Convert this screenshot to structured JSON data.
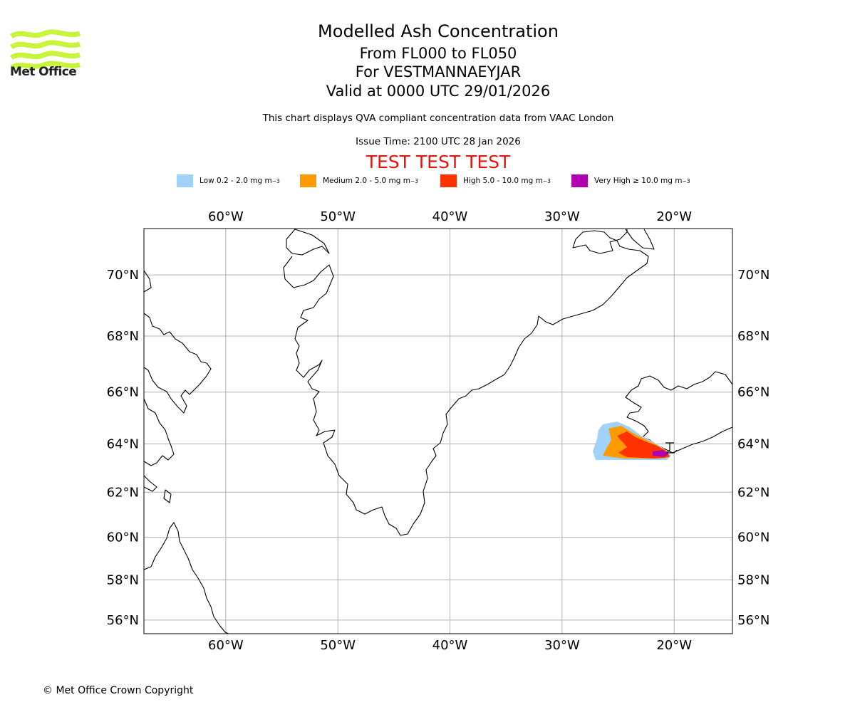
{
  "brand": {
    "logo_text": "Met Office",
    "logo_color": "#c6f53a"
  },
  "header": {
    "title": "Modelled Ash Concentration",
    "levels": "From FL000 to FL050",
    "volcano": "For VESTMANNAEYJAR",
    "valid": "Valid at 0000 UTC 29/01/2026",
    "description": "This chart displays QVA compliant concentration data from VAAC London",
    "issue_time": "Issue Time: 2100 UTC 28 Jan 2026",
    "test_banner": "TEST TEST TEST",
    "test_color": "#e8140c"
  },
  "legend": [
    {
      "label": "Low 0.2 - 2.0 mg m",
      "sup": "−3",
      "color": "#a0d2fa"
    },
    {
      "label": "Medium 2.0 - 5.0 mg m",
      "sup": "−3",
      "color": "#ff9a00"
    },
    {
      "label": "High 5.0 - 10.0 mg m",
      "sup": "−3",
      "color": "#ff3300"
    },
    {
      "label": "Very High  ≥  10.0 mg m",
      "sup": "−3",
      "color": "#b000b0"
    }
  ],
  "map": {
    "lon_ticks": [
      "60°W",
      "50°W",
      "40°W",
      "30°W",
      "20°W"
    ],
    "lon_values": [
      -60,
      -50,
      -40,
      -30,
      -20
    ],
    "lat_ticks": [
      "70°N",
      "68°N",
      "66°N",
      "64°N",
      "62°N",
      "60°N",
      "58°N",
      "56°N"
    ],
    "lat_values": [
      70,
      68,
      66,
      64,
      62,
      60,
      58,
      56
    ],
    "lon_range": [
      -67.3,
      -14.8
    ],
    "lat_range": [
      55.3,
      71.4
    ],
    "volcano_marker": "Vestmannaeyjar"
  },
  "footer": {
    "copyright": "© Met Office Crown Copyright"
  }
}
